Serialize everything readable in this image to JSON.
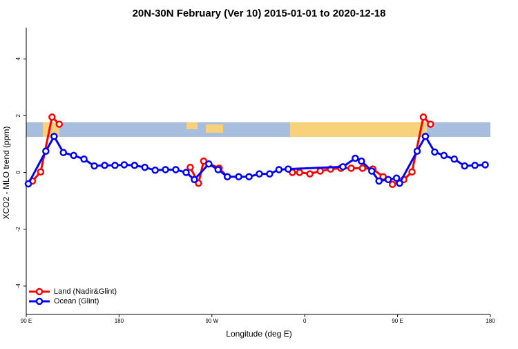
{
  "chart_data": {
    "type": "line",
    "title": "20N-30N February (Ver 10)   2015-01-01 to 2020-12-18",
    "x_label": "Longitude (deg E)",
    "y_label": "XCO2 - MLO trend (ppm)",
    "xlim": [
      90,
      540
    ],
    "ylim": [
      -5,
      5.1
    ],
    "xticks": [
      {
        "value": 90,
        "label": "90 E"
      },
      180,
      {
        "value": 270,
        "label": "90 W"
      },
      {
        "value": 360,
        "label": "0"
      },
      {
        "value": 450,
        "label": "90 E"
      },
      {
        "value": 540,
        "label": "180"
      }
    ],
    "yticks": [
      -4,
      -2,
      0,
      2,
      4
    ],
    "legend": "bottom-left",
    "series": [
      {
        "name": "Land (Nadir&Glint)",
        "color": "#ff0000",
        "x": [
          96,
          104,
          115,
          122,
          null,
          249,
          257,
          262,
          277,
          285,
          null,
          348,
          355,
          365,
          375,
          385,
          395,
          405,
          416,
          426,
          436,
          445,
          456,
          464,
          475,
          482
        ],
        "values": [
          -0.3,
          0.02,
          1.95,
          1.7,
          null,
          0.18,
          -0.38,
          0.4,
          0.15,
          -0.15,
          null,
          0.0,
          0.0,
          -0.05,
          0.05,
          0.12,
          0.15,
          0.15,
          0.15,
          0.12,
          -0.15,
          -0.42,
          -0.25,
          0.02,
          1.95,
          1.7
        ]
      },
      {
        "name": "Ocean (Glint)",
        "color": "#0000ff",
        "x": [
          92,
          109,
          117,
          126,
          136,
          146,
          156,
          166,
          176,
          185,
          195,
          205,
          215,
          225,
          235,
          245,
          253,
          267,
          276,
          285,
          296,
          306,
          316,
          326,
          335,
          344,
          397,
          409,
          415,
          425,
          432,
          441,
          449,
          452,
          469,
          477,
          486,
          495,
          505,
          515,
          525,
          535
        ],
        "values": [
          -0.4,
          0.75,
          1.27,
          0.7,
          0.6,
          0.47,
          0.23,
          0.25,
          0.25,
          0.27,
          0.25,
          0.18,
          0.08,
          0.1,
          0.1,
          0.0,
          -0.25,
          0.3,
          0.1,
          -0.15,
          -0.15,
          -0.15,
          -0.05,
          -0.05,
          0.1,
          0.12,
          0.2,
          0.5,
          0.4,
          0.05,
          -0.3,
          -0.25,
          -0.2,
          -0.38,
          0.75,
          1.27,
          0.72,
          0.6,
          0.47,
          0.23,
          0.25,
          0.27
        ]
      }
    ]
  }
}
